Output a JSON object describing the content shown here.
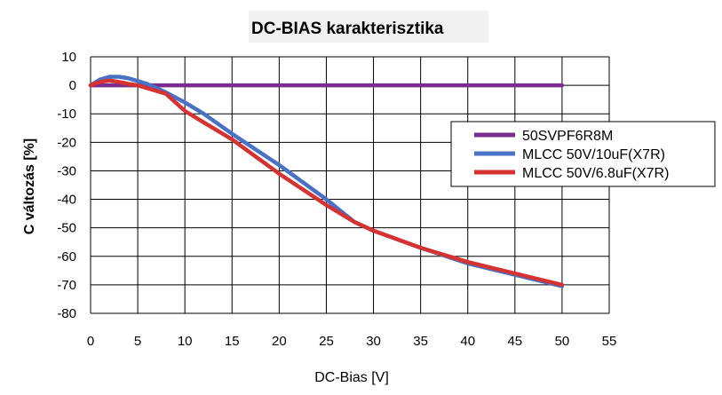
{
  "chart_data": {
    "type": "line",
    "title": "DC-BIAS karakterisztika",
    "xlabel": "DC-Bias [V]",
    "ylabel": "C változás [%]",
    "xlim": [
      0,
      55
    ],
    "ylim": [
      -80,
      10
    ],
    "x_ticks": [
      "0",
      "5",
      "10",
      "15",
      "20",
      "25",
      "30",
      "35",
      "40",
      "45",
      "50",
      "55"
    ],
    "y_ticks": [
      "10",
      "0",
      "-10",
      "-20",
      "-30",
      "-40",
      "-50",
      "-60",
      "-70",
      "-80"
    ],
    "grid": true,
    "legend_position": "right",
    "series": [
      {
        "name": "50SVPF6R8M",
        "color": "#7b2c8e",
        "x": [
          0,
          50
        ],
        "y": [
          0,
          0
        ]
      },
      {
        "name": "MLCC 50V/10uF(X7R)",
        "color": "#4a72c4",
        "x": [
          0,
          1,
          2,
          3,
          4,
          5,
          6,
          7,
          8,
          10,
          12,
          15,
          20,
          25,
          28,
          30,
          35,
          40,
          45,
          50
        ],
        "y": [
          0,
          2,
          3,
          3,
          2.5,
          1.5,
          0.5,
          -1,
          -2.5,
          -6,
          -10,
          -17,
          -28,
          -40,
          -48,
          -51,
          -57,
          -62.5,
          -66.5,
          -70.5
        ]
      },
      {
        "name": "MLCC 50V/6.8uF(X7R)",
        "color": "#d63232",
        "x": [
          0,
          1,
          2,
          3,
          4,
          5,
          6,
          7,
          8,
          10,
          12,
          15,
          20,
          25,
          28,
          30,
          35,
          40,
          45,
          50
        ],
        "y": [
          0,
          1.2,
          1.7,
          1.2,
          0.5,
          0,
          -1,
          -2,
          -3,
          -9,
          -13,
          -19,
          -31,
          -42,
          -48,
          -51,
          -57,
          -62,
          -66,
          -70
        ]
      }
    ]
  }
}
